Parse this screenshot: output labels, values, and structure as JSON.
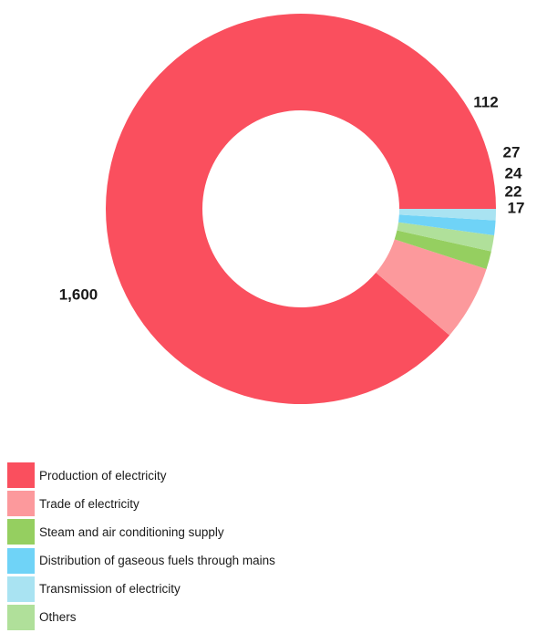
{
  "chart_data": {
    "type": "pie",
    "title": "",
    "categories": [
      "Production of electricity",
      "Trade of electricity",
      "Steam and air conditioning supply",
      "Others",
      "Distribution of gaseous fuels through mains",
      "Transmission of electricity"
    ],
    "values": [
      1600,
      112,
      27,
      24,
      22,
      17
    ],
    "value_labels": [
      "1,600",
      "112",
      "27",
      "24",
      "22",
      "17"
    ],
    "colors": [
      "#fa4f5e",
      "#fc999c",
      "#95cf60",
      "#b0e09a",
      "#6fd3f7",
      "#a9e3f2"
    ],
    "donut": true,
    "legend_placement": "bottom-left"
  },
  "legend": [
    {
      "label": "Production of electricity",
      "color": "#fa4f5e"
    },
    {
      "label": "Trade of electricity",
      "color": "#fc999c"
    },
    {
      "label": "Steam and air conditioning supply",
      "color": "#95cf60"
    },
    {
      "label": "Distribution of gaseous fuels through mains",
      "color": "#6fd3f7"
    },
    {
      "label": "Transmission of electricity",
      "color": "#a9e3f2"
    },
    {
      "label": "Others",
      "color": "#b0e09a"
    }
  ]
}
